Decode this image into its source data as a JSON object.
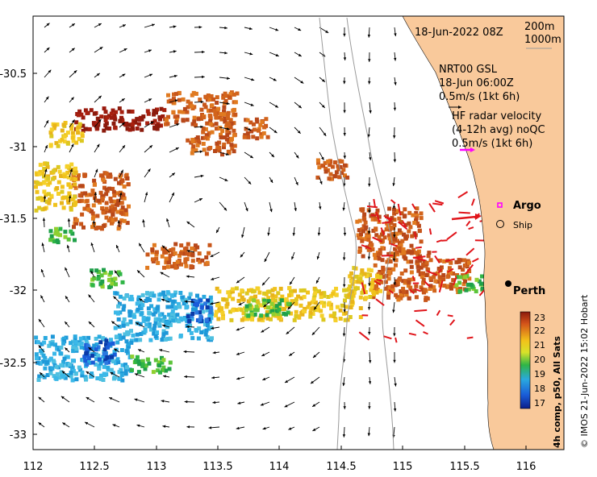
{
  "header": {
    "date": "18-Jun-2022 08Z",
    "contours": [
      "200m",
      "1000m"
    ]
  },
  "legend": {
    "model_lines": [
      "NRT00 GSL",
      "18-Jun 06:00Z",
      "0.5m/s (1kt 6h)"
    ],
    "radar_lines": [
      "HF radar velocity",
      "(4-12h avg) noQC",
      "0.5m/s (1kt 6h)"
    ],
    "argo_label": "Argo",
    "ship_label": "Ship",
    "city_label": "Perth"
  },
  "axes": {
    "x_ticks": [
      "112",
      "112.5",
      "113",
      "113.5",
      "114",
      "114.5",
      "115",
      "115.5",
      "116"
    ],
    "y_ticks": [
      "-30.5",
      "-31",
      "-31.5",
      "-32",
      "-32.5",
      "-33"
    ]
  },
  "colorbar": {
    "ticks": [
      "23",
      "22",
      "21",
      "20",
      "19",
      "18",
      "17"
    ],
    "caption": "4h comp, p50, All Sats",
    "min": 17,
    "max": 23
  },
  "credit": "© IMOS 21-Jun-2022 15:02 Hobart",
  "colors": {
    "land": "#f9c99b",
    "radar_arrow": "#e0141a",
    "argo_marker": "#ff00ff",
    "isobath": "#9a9a9a"
  }
}
